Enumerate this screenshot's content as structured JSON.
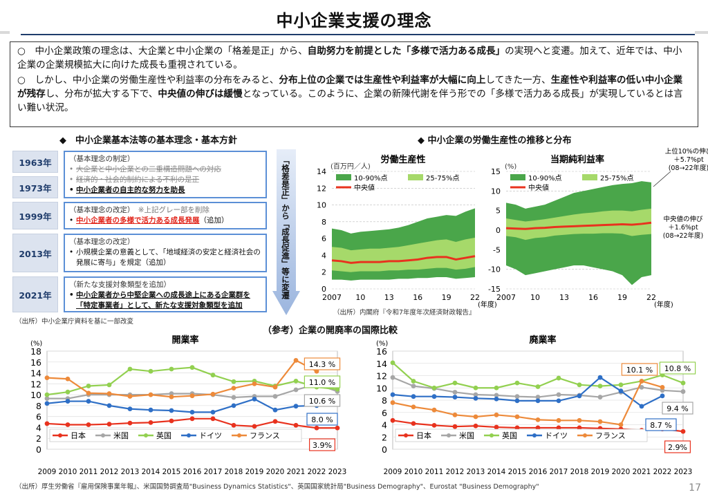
{
  "page": {
    "title": "中小企業支援の理念",
    "page_number": "17"
  },
  "summary": {
    "p1_a": "○　中小企業政策の理念は、大企業と中小企業の「格差是正」から、",
    "p1_b": "自助努力を前提とした「多様で活力ある成長」",
    "p1_c": "の実現へと変遷。加えて、近年では、中小企業の企業規模拡大に向けた成長も重視されている。",
    "p2_a": "○　しかし、中小企業の労働生産性や利益率の分布をみると、",
    "p2_b": "分布上位の企業では生産性や利益率が大幅に向上",
    "p2_c": "してきた一方、",
    "p2_d": "生産性や利益率の低い中小企業が残存",
    "p2_e": "し、分布が拡大する下で、",
    "p2_f": "中央値の伸びは緩慢",
    "p2_g": "となっている。このように、企業の新陳代謝を伴う形での「多様で活力ある成長」が実現しているとは言い難い状況。"
  },
  "policy": {
    "heading": "◆　中小企業基本法等の基本理念・基本方針",
    "years": [
      "1963年",
      "1973年",
      "1999年",
      "2013年",
      "2021年"
    ],
    "box1_head": "（基本理念の制定）",
    "box1_strike1": "大企業と中小企業との二重構造問題への対応",
    "box1_strike2": "経済的・社会的制約による不利の是正",
    "box1_item3": "中小企業者の自主的な努力を助長",
    "box2_head": "（基本理念の改定）",
    "box2_note": "※上記グレー部を削除",
    "box2_item": "中小企業者の多様で活力ある成長発展",
    "box2_suffix": "（追加）",
    "box3_head": "（基本理念の改定）",
    "box3_item": "小規模企業の意義として、「地域経済の安定と経済社会の発展に寄与」を規定（追加）",
    "box4_head": "（新たな支援対象類型を追加）",
    "box4_item": "中小企業者から中堅企業への成長途上にある企業群を「特定事業者」として、新たな支援対象類型を追加",
    "arrow_text": "「格差是正」から「成長促進」等に変遷",
    "source": "（出所）中小企業庁資料を基に一部改変"
  },
  "distribution": {
    "heading": "◆ 中小企業の労働生産性の推移と分布",
    "source": "（出所）内閣府『令和7年度年次経済財政報告』",
    "legend": [
      "10-90%点",
      "25-75%点",
      "中央値"
    ],
    "x_ticks": [
      "2007",
      "10",
      "13",
      "16",
      "19",
      "22"
    ],
    "x_unit": "(年度)",
    "annotation_top": [
      "上位10%の伸び",
      "＋5.7%pt",
      "(08→22年度)"
    ],
    "annotation_mid": [
      "中央値の伸び",
      "＋1.6%pt",
      "(08→22年度)"
    ],
    "colors": {
      "outer": "#4aa64a",
      "inner": "#a6d96a",
      "median": "#e8321e"
    }
  },
  "chart_data": [
    {
      "type": "area",
      "title": "労働生産性",
      "ylabel": "(百万円／人)",
      "ylim": [
        0,
        14
      ],
      "yticks": [
        0,
        2,
        4,
        6,
        8,
        10,
        12,
        14
      ],
      "x": [
        2007,
        2008,
        2009,
        2010,
        2011,
        2012,
        2013,
        2014,
        2015,
        2016,
        2017,
        2018,
        2019,
        2020,
        2021,
        2022
      ],
      "series": [
        {
          "name": "p90",
          "values": [
            7.2,
            7.0,
            6.6,
            6.8,
            6.9,
            7.0,
            7.1,
            7.3,
            7.6,
            8.0,
            8.4,
            8.6,
            8.8,
            8.7,
            9.2,
            9.6
          ]
        },
        {
          "name": "p75",
          "values": [
            5.0,
            4.9,
            4.6,
            4.7,
            4.8,
            4.8,
            4.9,
            5.0,
            5.2,
            5.4,
            5.6,
            5.8,
            5.9,
            5.6,
            5.9,
            6.1
          ]
        },
        {
          "name": "中央値",
          "values": [
            3.4,
            3.3,
            3.1,
            3.2,
            3.2,
            3.2,
            3.3,
            3.3,
            3.4,
            3.5,
            3.7,
            3.8,
            3.8,
            3.5,
            3.7,
            3.9
          ]
        },
        {
          "name": "p25",
          "values": [
            2.2,
            2.1,
            2.0,
            2.1,
            2.1,
            2.1,
            2.2,
            2.2,
            2.3,
            2.3,
            2.4,
            2.5,
            2.5,
            2.3,
            2.4,
            2.6
          ]
        },
        {
          "name": "p10",
          "values": [
            1.1,
            1.1,
            1.0,
            1.1,
            1.1,
            1.1,
            1.1,
            1.2,
            1.2,
            1.3,
            1.3,
            1.4,
            1.4,
            1.2,
            1.3,
            1.4
          ]
        }
      ]
    },
    {
      "type": "area",
      "title": "当期純利益率",
      "ylabel": "(%)",
      "ylim": [
        -15,
        15
      ],
      "yticks": [
        -15,
        -10,
        -5,
        0,
        5,
        10,
        15
      ],
      "x": [
        2007,
        2008,
        2009,
        2010,
        2011,
        2012,
        2013,
        2014,
        2015,
        2016,
        2017,
        2018,
        2019,
        2020,
        2021,
        2022
      ],
      "series": [
        {
          "name": "p90",
          "values": [
            7.0,
            6.5,
            5.5,
            6.0,
            6.5,
            7.5,
            8.5,
            9.5,
            10.0,
            10.5,
            11.0,
            11.5,
            11.8,
            12.0,
            12.5,
            12.2
          ]
        },
        {
          "name": "p75",
          "values": [
            3.0,
            2.6,
            2.2,
            2.5,
            2.8,
            3.2,
            3.6,
            4.0,
            4.3,
            4.5,
            4.8,
            5.0,
            5.0,
            4.8,
            5.2,
            5.5
          ]
        },
        {
          "name": "中央値",
          "values": [
            0.5,
            0.4,
            0.3,
            0.5,
            0.6,
            0.8,
            0.9,
            1.0,
            1.1,
            1.2,
            1.3,
            1.4,
            1.5,
            1.4,
            1.6,
            1.9
          ]
        },
        {
          "name": "p25",
          "values": [
            -1.5,
            -1.8,
            -2.5,
            -2.0,
            -1.8,
            -1.4,
            -1.2,
            -1.0,
            -0.9,
            -0.9,
            -0.8,
            -0.8,
            -0.9,
            -1.5,
            -1.2,
            -1.0
          ]
        },
        {
          "name": "p10",
          "values": [
            -9.0,
            -10.0,
            -11.5,
            -11.0,
            -10.5,
            -10.0,
            -9.5,
            -9.0,
            -9.0,
            -9.5,
            -10.0,
            -10.5,
            -11.5,
            -14.0,
            -12.0,
            -11.5
          ]
        }
      ]
    },
    {
      "type": "line",
      "title": "開業率",
      "ylabel": "(%)",
      "ylim": [
        0,
        18
      ],
      "yticks": [
        0,
        2,
        4,
        6,
        8,
        10,
        12,
        14,
        16,
        18
      ],
      "categories": [
        "2009",
        "2010",
        "2011",
        "2012",
        "2013",
        "2014",
        "2015",
        "2016",
        "2017",
        "2018",
        "2019",
        "2020",
        "2021",
        "2022",
        "2023"
      ],
      "series": [
        {
          "name": "日本",
          "color": "#e8321e",
          "values": [
            4.7,
            4.5,
            4.5,
            4.6,
            4.8,
            4.9,
            5.2,
            5.6,
            5.6,
            4.4,
            4.2,
            5.1,
            4.4,
            3.9,
            3.9
          ]
        },
        {
          "name": "米国",
          "color": "#a6a6a6",
          "values": [
            9.3,
            9.3,
            10.0,
            10.0,
            10.0,
            10.0,
            10.2,
            10.2,
            10.0,
            9.5,
            9.7,
            9.7,
            10.9,
            11.9,
            10.6
          ]
        },
        {
          "name": "英国",
          "color": "#92d050",
          "values": [
            10.0,
            10.5,
            11.6,
            11.8,
            14.7,
            14.3,
            14.7,
            15.0,
            13.6,
            12.4,
            12.5,
            11.6,
            12.5,
            11.4,
            11.0
          ]
        },
        {
          "name": "ドイツ",
          "color": "#2e6fc6",
          "values": [
            8.4,
            8.8,
            8.8,
            8.0,
            7.4,
            7.2,
            7.1,
            6.8,
            6.8,
            8.0,
            9.2,
            7.2,
            7.9,
            8.0,
            null
          ]
        },
        {
          "name": "フランス",
          "color": "#ed8a3a",
          "values": [
            13.1,
            12.9,
            10.3,
            10.2,
            9.7,
            10.0,
            9.6,
            9.8,
            10.1,
            11.2,
            12.0,
            11.4,
            16.3,
            14.3,
            null
          ]
        }
      ],
      "callouts": [
        "14.3 %",
        "11.0 %",
        "10.6 %",
        "8.0 %",
        "3.9%"
      ]
    },
    {
      "type": "line",
      "title": "廃業率",
      "ylabel": "(%)",
      "ylim": [
        0,
        16
      ],
      "yticks": [
        0,
        2,
        4,
        6,
        8,
        10,
        12,
        14,
        16
      ],
      "categories": [
        "2009",
        "2010",
        "2011",
        "2012",
        "2013",
        "2014",
        "2015",
        "2016",
        "2017",
        "2018",
        "2019",
        "2020",
        "2021",
        "2022",
        "2023"
      ],
      "series": [
        {
          "name": "日本",
          "color": "#e8321e",
          "values": [
            4.7,
            4.2,
            3.9,
            3.7,
            3.8,
            3.6,
            3.5,
            3.5,
            3.5,
            3.5,
            3.4,
            3.3,
            3.1,
            3.3,
            2.9
          ]
        },
        {
          "name": "米国",
          "color": "#a6a6a6",
          "values": [
            11.7,
            10.3,
            9.9,
            9.3,
            8.9,
            8.8,
            8.6,
            8.5,
            8.9,
            8.8,
            8.5,
            9.3,
            10.1,
            9.6,
            9.4
          ]
        },
        {
          "name": "英国",
          "color": "#92d050",
          "values": [
            14.1,
            11.1,
            10.0,
            10.8,
            10.0,
            10.0,
            10.8,
            10.2,
            11.6,
            10.5,
            10.3,
            10.5,
            11.1,
            12.1,
            10.8
          ]
        },
        {
          "name": "ドイツ",
          "color": "#2e6fc6",
          "values": [
            8.9,
            8.6,
            8.6,
            8.5,
            8.3,
            8.2,
            7.9,
            7.9,
            7.9,
            8.7,
            11.7,
            9.5,
            7.0,
            8.7,
            null
          ]
        },
        {
          "name": "フランス",
          "color": "#ed8a3a",
          "values": [
            7.6,
            6.9,
            6.4,
            5.6,
            5.3,
            5.6,
            5.3,
            4.8,
            4.7,
            4.7,
            4.5,
            4.0,
            11.1,
            10.1,
            null
          ]
        }
      ],
      "callouts": [
        "10.1 %",
        "10.8 %",
        "9.4 %",
        "8.7 %",
        "2.9%"
      ]
    }
  ],
  "international": {
    "heading": "（参考）企業の開廃率の国際比較",
    "source": "（出所）厚生労働省『雇用保険事業年報』、米国国勢調査局\"Business Dynamics Statistics\"、英国国家統計局\"Business Demography\"、Eurostat \"Business Demography\""
  }
}
